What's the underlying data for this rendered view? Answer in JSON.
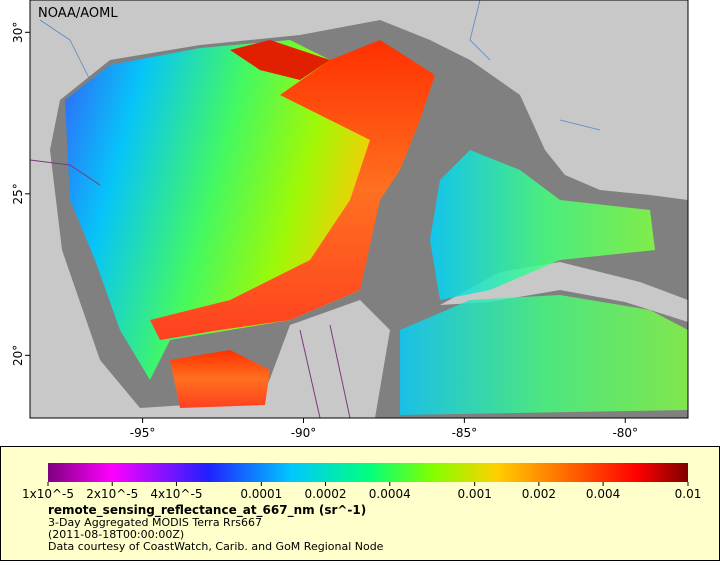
{
  "credit": "NOAA/AOML",
  "map": {
    "xlim": [
      -98.5,
      -78.05
    ],
    "ylim": [
      18.06,
      31.0
    ],
    "xticks": [
      {
        "value": -95,
        "label": "-95°"
      },
      {
        "value": -90,
        "label": "-90°"
      },
      {
        "value": -85,
        "label": "-85°"
      },
      {
        "value": -80,
        "label": "-80°"
      }
    ],
    "yticks": [
      {
        "value": 30,
        "label": "30°"
      },
      {
        "value": 25,
        "label": "25°"
      },
      {
        "value": 20,
        "label": "20°"
      }
    ]
  },
  "colorbar": {
    "scale": "log",
    "lim": [
      1e-05,
      0.01
    ],
    "ticks": [
      {
        "value": 1e-05,
        "label": "1x10^-5"
      },
      {
        "value": 2e-05,
        "label": "2x10^-5"
      },
      {
        "value": 4e-05,
        "label": "4x10^-5"
      },
      0.0001,
      0.0002,
      0.0004,
      0.001,
      0.002,
      0.004,
      0.01
    ]
  },
  "legend": {
    "variable": "remote_sensing_reflectance_at_667_nm (sr^-1)",
    "lines": [
      "3-Day Aggregated MODIS Terra Rrs667",
      "(2011-08-18T00:00:00Z)",
      "Data courtesy of CoastWatch, Carib. and GoM Regional Node"
    ]
  }
}
